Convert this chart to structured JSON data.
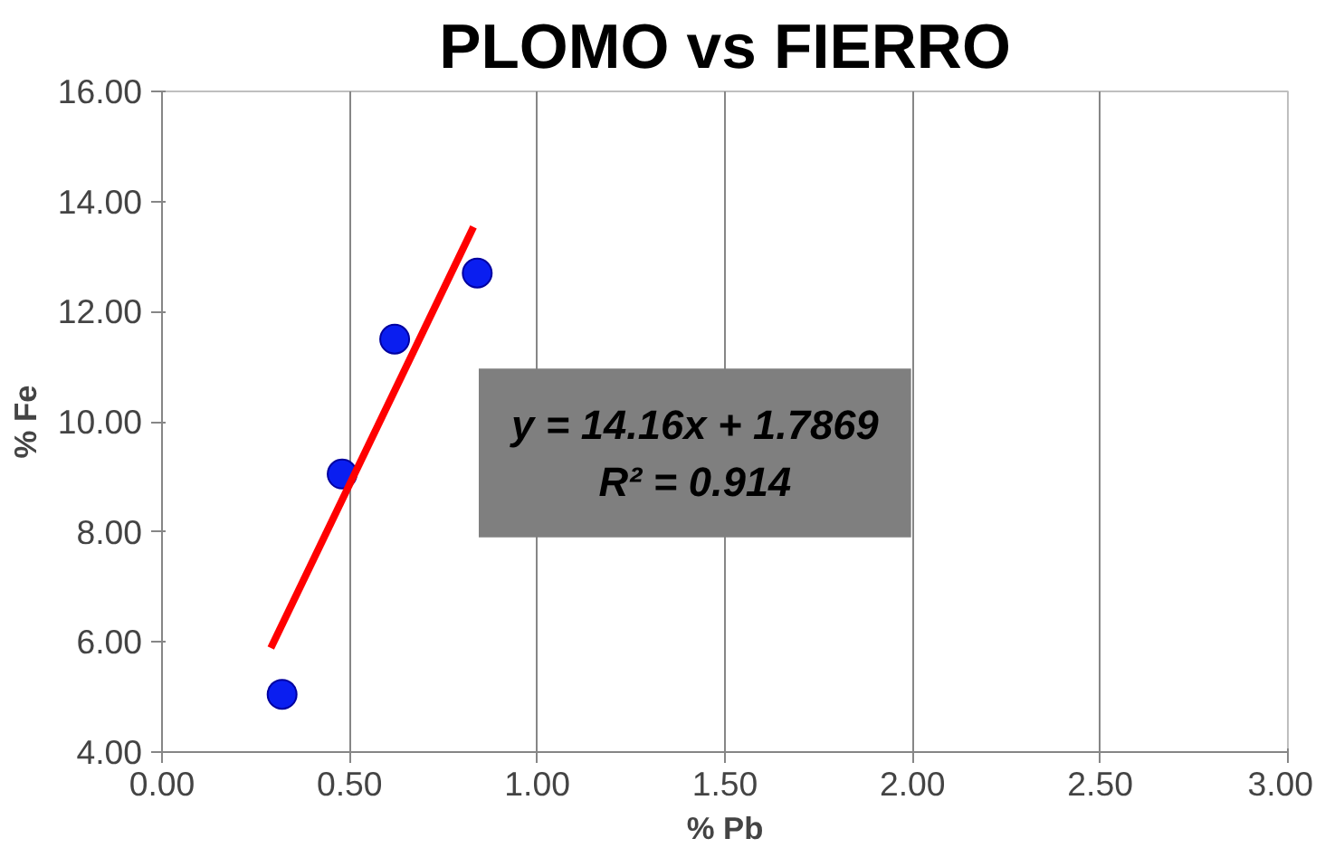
{
  "chart_data": {
    "type": "scatter",
    "title": "PLOMO vs FIERRO",
    "xlabel": "% Pb",
    "ylabel": "% Fe",
    "x": [
      0.32,
      0.48,
      0.62,
      0.84
    ],
    "series": [
      {
        "color": "#0a1ef0",
        "values": [
          5.05,
          9.05,
          11.5,
          12.7
        ]
      },
      {
        "type": "line",
        "marker": "none",
        "color": "#ff0000",
        "x": [
          0.29,
          0.83
        ],
        "values": [
          5.89,
          13.54
        ]
      }
    ],
    "marker": "circle",
    "grid": "x",
    "xlim": [
      0,
      3
    ],
    "xticks": [
      {
        "value": 0,
        "label": "0.00"
      },
      {
        "value": 0.5,
        "label": "0.50"
      },
      {
        "value": 1,
        "label": "1.00"
      },
      {
        "value": 1.5,
        "label": "1.50"
      },
      {
        "value": 2,
        "label": "2.00"
      },
      {
        "value": 2.5,
        "label": "2.50"
      },
      {
        "value": 3,
        "label": "3.00"
      }
    ],
    "ylim": [
      4,
      16
    ],
    "yticks": [
      {
        "value": 4,
        "label": "4.00"
      },
      {
        "value": 6,
        "label": "6.00"
      },
      {
        "value": 8,
        "label": "8.00"
      },
      {
        "value": 10,
        "label": "10.00"
      },
      {
        "value": 12,
        "label": "12.00"
      },
      {
        "value": 14,
        "label": "14.00"
      },
      {
        "value": 16,
        "label": "16.00"
      }
    ],
    "annotations": [
      "y = 14.16x + 1.7869",
      "R² = 0.914"
    ]
  }
}
